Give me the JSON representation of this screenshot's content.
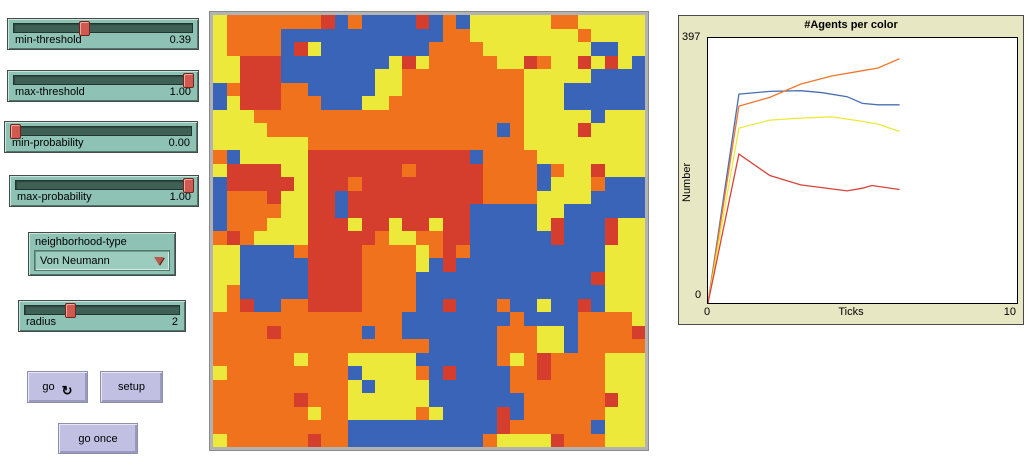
{
  "sliders": [
    {
      "label": "min-threshold",
      "value": "0.39",
      "fraction": 0.39
    },
    {
      "label": "max-threshold",
      "value": "1.00",
      "fraction": 1.0
    },
    {
      "label": "min-probability",
      "value": "0.00",
      "fraction": 0.0
    },
    {
      "label": "max-probability",
      "value": "1.00",
      "fraction": 1.0
    },
    {
      "label": "radius",
      "value": "2",
      "fraction": 0.28
    }
  ],
  "chooser": {
    "label": "neighborhood-type",
    "value": "Von Neumann"
  },
  "buttons": {
    "go": {
      "label": "go",
      "icon": "↻"
    },
    "setup": {
      "label": "setup"
    },
    "go_once": {
      "label": "go once"
    }
  },
  "world": {
    "rows": 32,
    "cols": 32,
    "palette": {
      "Y": "#ece93b",
      "O": "#f0721c",
      "R": "#d53e2c",
      "B": "#3a64b8"
    },
    "grid": [
      "YOOOOOOORBOBBBBRBOBYYYYYYOOYYYYY",
      "YOOOOBBBBBBBBBBBBOOYYYYYYYYOYYYY",
      "YOOOOBRYBBBBBBBBOOOOYYYYYYYYBBYY",
      "YYRRRBBBBBBBBYRYOOOOOYYROYYRYRYB",
      "YYRRRBBBBBBBYYOOOOOOOOOYYYYYBBBB",
      "BORRROOBBBBBYYOOOOOOOOOYYYBBBBBB",
      "BYRRROOOBBBYYOOOOOOOOOOYYYBBBBBB",
      "YYYOOOOOOOOOOOOOOOOOOOOYYYYYBYYY",
      "YYYYOOOOOOOOOOOOOOOOOBOYYYYRYYYY",
      "YYYYYYYOOOOOOOOOOOOOOOOYYYYYYYYY",
      "OBYYYYYRRRRRRRRRRRRBOOOOYYYYYYYY",
      "YRRRRYYRRRRRRRORRRRROOOOBOYYRYYY",
      "BRRRRRYRRRORRRRRRRRROOOOBYYYOBBB",
      "BOOORYYRRBRRRRRRRRRROOOOYYYYBBBB",
      "BOOOOYYRRBRRRRRRRRRBBBBBYYBBBBBB",
      "BOOOYYYRRRYRRYRRYRRBBBBBYRBBBRYY",
      "OROYYYYRRRRROYYOORRBBBBBBRBBBRYY",
      "YYBBBBORRRROOOOYOROBBBBBBBBBBYYY",
      "YYBBBBBRRRROOOOYBRBBBBBBBBBBBYYY",
      "YYBBBBBRRRROOOOBBBBBBBBBBBBBRYYY",
      "YOBBBBBRRRROOOOBBBBBBBBBBBBBBYYY",
      "YORBBOORRRROOOOBBRBBBOBBYBBRBYYY",
      "OOOOOOOOOOOOOOBBBBBBBBOBBBBOOOOY",
      "OOOOROOOOOOBOOBBBBBBBOOOYYBOOOOR",
      "OOOOOOOOOOOOOOOOBBBBBOOOYYBOOOOO",
      "OOOOOOYOOOYYYYYBBBBBBOYOROOOOYYY",
      "YOOOOOOOOOBYYYYOBRBBBBOOROOOOYYY",
      "OOOOOOOOOOYBYYYYBBBBBBOOOOOOOYYY",
      "OOOOOOROOOYYYYYYBBBBBBBOOOOOORYY",
      "OOOOOOOYOOYYYYYOYBBBBRBOOOOOOYYY",
      "OOOOOOOOOOBBBBBBBBBBBROOOOOOBYYY",
      "YOOOOOOROOBBBBBBBBBBOYYYYROOOYYY"
    ]
  },
  "chart_data": {
    "type": "line",
    "title": "#Agents per color",
    "xlabel": "Ticks",
    "ylabel": "Number",
    "xlim": [
      0,
      10
    ],
    "ylim": [
      0,
      397
    ],
    "y_max_label": "397",
    "y_min_label": "0",
    "x_left_label": "0",
    "x_right_label": "10",
    "grid": false,
    "legend": "none",
    "series": [
      {
        "name": "blue",
        "color": "#4a6fb5",
        "points": [
          [
            0,
            0
          ],
          [
            1,
            313
          ],
          [
            2,
            317
          ],
          [
            3,
            318
          ],
          [
            3.7,
            315
          ],
          [
            4.5,
            309
          ],
          [
            5,
            299
          ],
          [
            5.5,
            297
          ],
          [
            6.2,
            297
          ]
        ]
      },
      {
        "name": "orange",
        "color": "#f2762b",
        "points": [
          [
            0,
            0
          ],
          [
            1,
            295
          ],
          [
            2,
            308
          ],
          [
            3,
            328
          ],
          [
            4,
            340
          ],
          [
            5,
            348
          ],
          [
            5.5,
            352
          ],
          [
            6.2,
            366
          ]
        ]
      },
      {
        "name": "yellow",
        "color": "#ece93b",
        "points": [
          [
            0,
            0
          ],
          [
            1,
            262
          ],
          [
            2,
            274
          ],
          [
            3,
            277
          ],
          [
            4,
            279
          ],
          [
            5,
            272
          ],
          [
            5.5,
            268
          ],
          [
            6.2,
            257
          ]
        ]
      },
      {
        "name": "red",
        "color": "#d8433a",
        "points": [
          [
            0,
            0
          ],
          [
            1,
            223
          ],
          [
            2,
            191
          ],
          [
            3,
            177
          ],
          [
            4,
            171
          ],
          [
            4.5,
            168
          ],
          [
            5,
            172
          ],
          [
            5.3,
            176
          ],
          [
            6.2,
            170
          ]
        ]
      }
    ]
  }
}
